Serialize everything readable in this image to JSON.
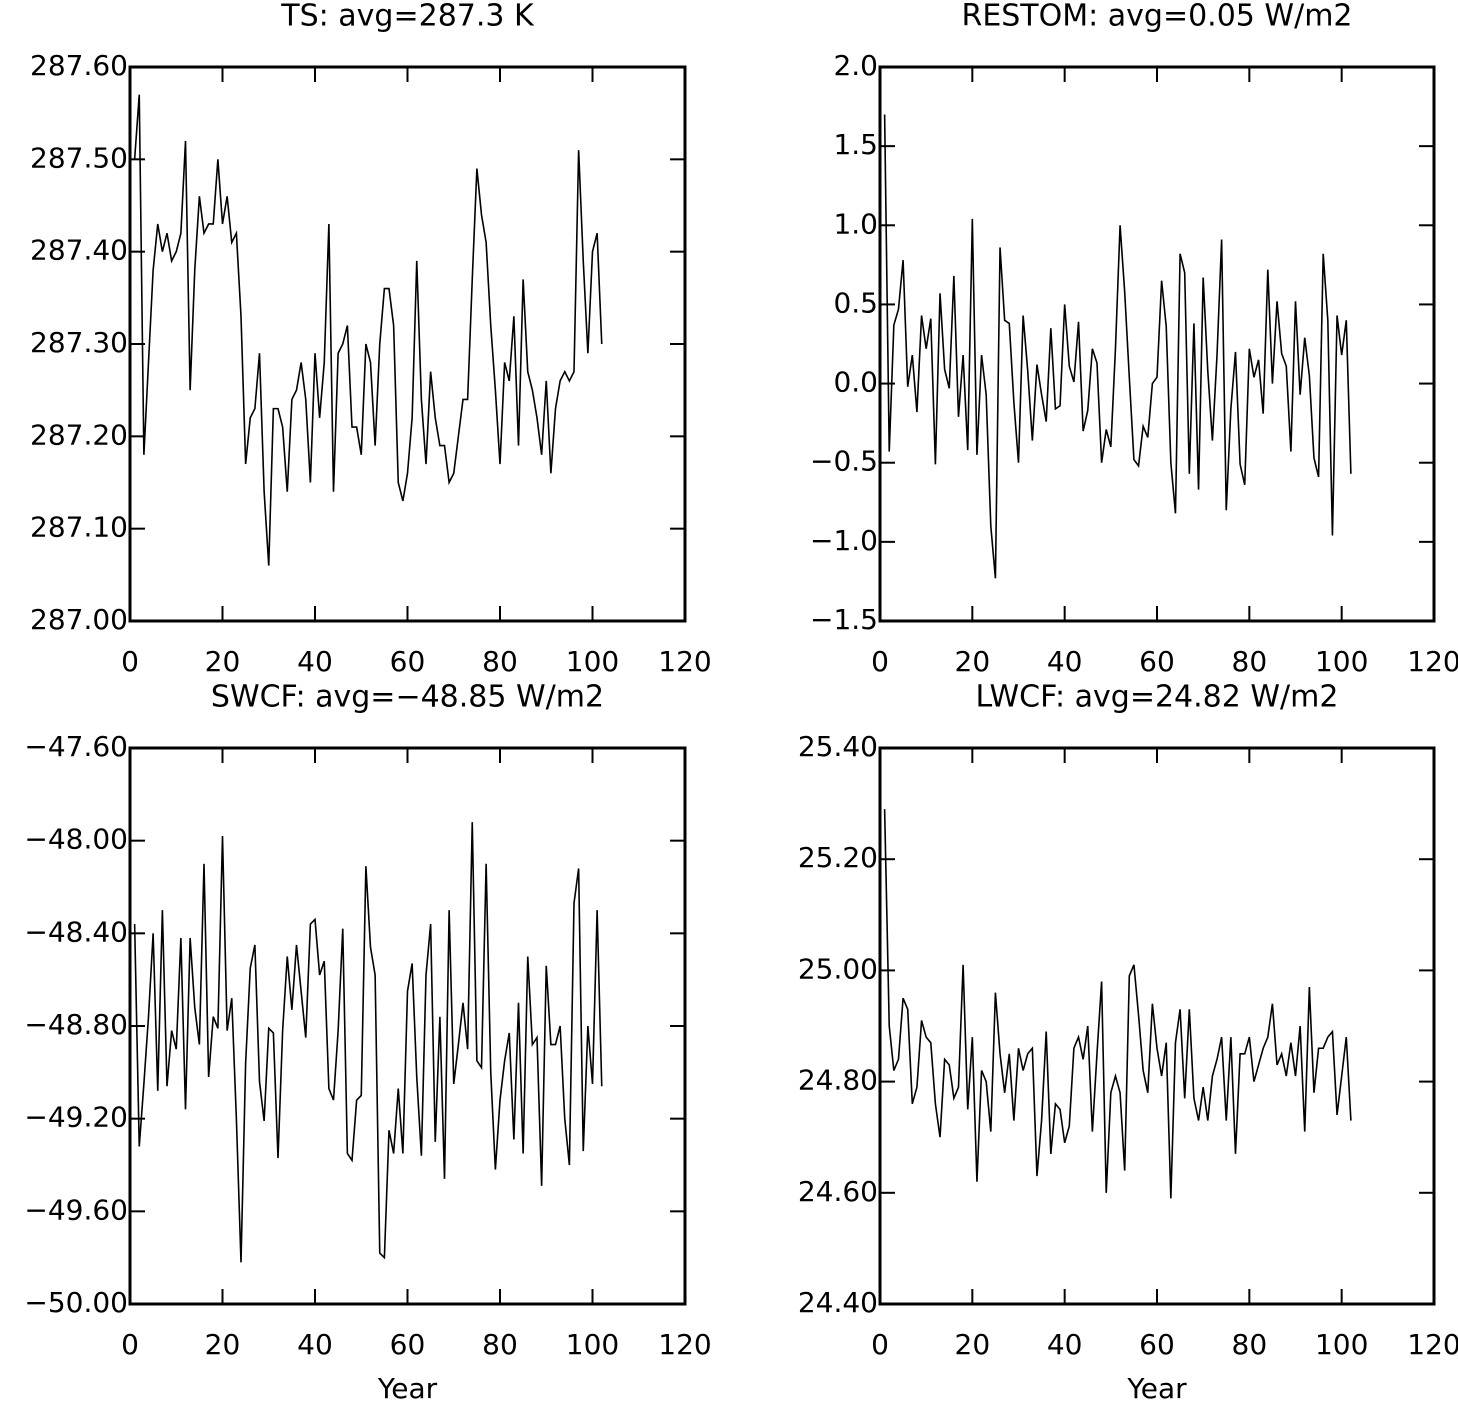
{
  "chart_data": [
    {
      "type": "line",
      "title": "TS: avg=287.3 K",
      "color": "#000000",
      "x": [
        1,
        2,
        3,
        4,
        5,
        6,
        7,
        8,
        9,
        10,
        11,
        12,
        13,
        14,
        15,
        16,
        17,
        18,
        19,
        20,
        21,
        22,
        23,
        24,
        25,
        26,
        27,
        28,
        29,
        30,
        31,
        32,
        33,
        34,
        35,
        36,
        37,
        38,
        39,
        40,
        41,
        42,
        43,
        44,
        45,
        46,
        47,
        48,
        49,
        50,
        51,
        52,
        53,
        54,
        55,
        56,
        57,
        58,
        59,
        60,
        61,
        62,
        63,
        64,
        65,
        66,
        67,
        68,
        69,
        70,
        71,
        72,
        73,
        74,
        75,
        76,
        77,
        78,
        79,
        80,
        81,
        82,
        83,
        84,
        85,
        86,
        87,
        88,
        89,
        90,
        91,
        92,
        93,
        94,
        95,
        96,
        97,
        98,
        99,
        100,
        101,
        102
      ],
      "values": [
        287.5,
        287.57,
        287.18,
        287.28,
        287.38,
        287.43,
        287.4,
        287.42,
        287.39,
        287.4,
        287.42,
        287.52,
        287.25,
        287.38,
        287.46,
        287.42,
        287.43,
        287.43,
        287.5,
        287.43,
        287.46,
        287.41,
        287.42,
        287.33,
        287.17,
        287.22,
        287.23,
        287.29,
        287.14,
        287.06,
        287.23,
        287.23,
        287.21,
        287.14,
        287.24,
        287.25,
        287.28,
        287.24,
        287.15,
        287.29,
        287.22,
        287.28,
        287.43,
        287.14,
        287.29,
        287.3,
        287.32,
        287.21,
        287.21,
        287.18,
        287.3,
        287.28,
        287.19,
        287.3,
        287.36,
        287.36,
        287.32,
        287.15,
        287.13,
        287.16,
        287.22,
        287.39,
        287.24,
        287.17,
        287.27,
        287.22,
        287.19,
        287.19,
        287.15,
        287.16,
        287.2,
        287.24,
        287.24,
        287.37,
        287.49,
        287.44,
        287.41,
        287.32,
        287.25,
        287.17,
        287.28,
        287.26,
        287.33,
        287.19,
        287.37,
        287.27,
        287.25,
        287.22,
        287.18,
        287.26,
        287.16,
        287.23,
        287.26,
        287.27,
        287.26,
        287.27,
        287.51,
        287.39,
        287.29,
        287.4,
        287.42,
        287.3
      ],
      "xlim": [
        0,
        120
      ],
      "xticks": [
        0,
        20,
        40,
        60,
        80,
        100,
        120
      ],
      "ylim": [
        287.0,
        287.6
      ],
      "yticks": [
        {
          "value": 287.0,
          "label": "287.00"
        },
        {
          "value": 287.1,
          "label": "287.10"
        },
        {
          "value": 287.2,
          "label": "287.20"
        },
        {
          "value": 287.3,
          "label": "287.30"
        },
        {
          "value": 287.4,
          "label": "287.40"
        },
        {
          "value": 287.5,
          "label": "287.50"
        },
        {
          "value": 287.6,
          "label": "287.60"
        }
      ]
    },
    {
      "type": "line",
      "title": "RESTOM: avg=0.05 W/m2",
      "color": "#000000",
      "x": [
        1,
        2,
        3,
        4,
        5,
        6,
        7,
        8,
        9,
        10,
        11,
        12,
        13,
        14,
        15,
        16,
        17,
        18,
        19,
        20,
        21,
        22,
        23,
        24,
        25,
        26,
        27,
        28,
        29,
        30,
        31,
        32,
        33,
        34,
        35,
        36,
        37,
        38,
        39,
        40,
        41,
        42,
        43,
        44,
        45,
        46,
        47,
        48,
        49,
        50,
        51,
        52,
        53,
        54,
        55,
        56,
        57,
        58,
        59,
        60,
        61,
        62,
        63,
        64,
        65,
        66,
        67,
        68,
        69,
        70,
        71,
        72,
        73,
        74,
        75,
        76,
        77,
        78,
        79,
        80,
        81,
        82,
        83,
        84,
        85,
        86,
        87,
        88,
        89,
        90,
        91,
        92,
        93,
        94,
        95,
        96,
        97,
        98,
        99,
        100,
        101,
        102
      ],
      "values": [
        1.7,
        -0.43,
        0.37,
        0.47,
        0.78,
        -0.02,
        0.18,
        -0.18,
        0.43,
        0.22,
        0.41,
        -0.51,
        0.57,
        0.09,
        -0.03,
        0.68,
        -0.21,
        0.18,
        -0.42,
        1.04,
        -0.45,
        0.18,
        -0.07,
        -0.9,
        -1.23,
        0.86,
        0.4,
        0.38,
        -0.12,
        -0.5,
        0.43,
        0.08,
        -0.36,
        0.12,
        -0.07,
        -0.24,
        0.35,
        -0.16,
        -0.14,
        0.5,
        0.11,
        0.01,
        0.39,
        -0.3,
        -0.17,
        0.22,
        0.13,
        -0.5,
        -0.29,
        -0.4,
        0.22,
        1.0,
        0.58,
        0.04,
        -0.48,
        -0.52,
        -0.27,
        -0.34,
        0.0,
        0.04,
        0.65,
        0.36,
        -0.5,
        -0.82,
        0.82,
        0.7,
        -0.57,
        0.38,
        -0.67,
        0.67,
        0.08,
        -0.36,
        0.18,
        0.91,
        -0.8,
        -0.16,
        0.2,
        -0.51,
        -0.64,
        0.22,
        0.04,
        0.15,
        -0.19,
        0.72,
        0.0,
        0.52,
        0.19,
        0.11,
        -0.43,
        0.52,
        -0.07,
        0.29,
        0.05,
        -0.47,
        -0.59,
        0.82,
        0.4,
        -0.96,
        0.43,
        0.18,
        0.4,
        -0.57
      ],
      "xlim": [
        0,
        120
      ],
      "xticks": [
        0,
        20,
        40,
        60,
        80,
        100,
        120
      ],
      "ylim": [
        -1.5,
        2.0
      ],
      "yticks": [
        {
          "value": -1.5,
          "label": "−1.5"
        },
        {
          "value": -1.0,
          "label": "−1.0"
        },
        {
          "value": -0.5,
          "label": "−0.5"
        },
        {
          "value": 0,
          "label": "0.0"
        },
        0.5,
        {
          "value": 1,
          "label": "1.0"
        },
        1.5,
        {
          "value": 2,
          "label": "2.0"
        }
      ]
    },
    {
      "type": "line",
      "title": "SWCF: avg=−48.85 W/m2",
      "xlabel": "Year",
      "color": "#000000",
      "x": [
        1,
        2,
        3,
        4,
        5,
        6,
        7,
        8,
        9,
        10,
        11,
        12,
        13,
        14,
        15,
        16,
        17,
        18,
        19,
        20,
        21,
        22,
        23,
        24,
        25,
        26,
        27,
        28,
        29,
        30,
        31,
        32,
        33,
        34,
        35,
        36,
        37,
        38,
        39,
        40,
        41,
        42,
        43,
        44,
        45,
        46,
        47,
        48,
        49,
        50,
        51,
        52,
        53,
        54,
        55,
        56,
        57,
        58,
        59,
        60,
        61,
        62,
        63,
        64,
        65,
        66,
        67,
        68,
        69,
        70,
        71,
        72,
        73,
        74,
        75,
        76,
        77,
        78,
        79,
        80,
        81,
        82,
        83,
        84,
        85,
        86,
        87,
        88,
        89,
        90,
        91,
        92,
        93,
        94,
        95,
        96,
        97,
        98,
        99,
        100,
        101,
        102
      ],
      "values": [
        -48.36,
        -49.32,
        -49.05,
        -48.76,
        -48.4,
        -49.08,
        -48.3,
        -49.06,
        -48.82,
        -48.9,
        -48.42,
        -49.16,
        -48.42,
        -48.72,
        -48.88,
        -48.1,
        -49.02,
        -48.76,
        -48.81,
        -47.98,
        -48.82,
        -48.68,
        -49.2,
        -49.82,
        -48.96,
        -48.55,
        -48.45,
        -49.04,
        -49.21,
        -48.81,
        -48.83,
        -49.37,
        -48.82,
        -48.5,
        -48.73,
        -48.45,
        -48.65,
        -48.85,
        -48.36,
        -48.34,
        -48.58,
        -48.52,
        -49.07,
        -49.12,
        -48.82,
        -48.38,
        -49.35,
        -49.38,
        -49.12,
        -49.1,
        -48.11,
        -48.46,
        -48.58,
        -49.78,
        -49.8,
        -49.25,
        -49.35,
        -49.07,
        -49.35,
        -48.65,
        -48.53,
        -49.02,
        -49.36,
        -48.58,
        -48.36,
        -49.3,
        -48.76,
        -49.46,
        -48.3,
        -49.05,
        -48.88,
        -48.7,
        -48.9,
        -47.92,
        -48.95,
        -48.98,
        -48.1,
        -49.0,
        -49.42,
        -49.12,
        -48.95,
        -48.83,
        -49.29,
        -48.7,
        -49.35,
        -48.5,
        -48.88,
        -48.85,
        -49.49,
        -48.54,
        -48.88,
        -48.88,
        -48.8,
        -49.2,
        -49.4,
        -48.27,
        -48.12,
        -49.34,
        -48.8,
        -49.05,
        -48.3,
        -49.06
      ],
      "xlim": [
        0,
        120
      ],
      "xticks": [
        0,
        20,
        40,
        60,
        80,
        100,
        120
      ],
      "ylim": [
        -50.0,
        -47.6
      ],
      "yticks": [
        {
          "value": -50.0,
          "label": "−50.00"
        },
        {
          "value": -49.6,
          "label": "−49.60"
        },
        {
          "value": -49.2,
          "label": "−49.20"
        },
        {
          "value": -48.8,
          "label": "−48.80"
        },
        {
          "value": -48.4,
          "label": "−48.40"
        },
        {
          "value": -48.0,
          "label": "−48.00"
        },
        {
          "value": -47.6,
          "label": "−47.60"
        }
      ]
    },
    {
      "type": "line",
      "title": "LWCF: avg=24.82 W/m2",
      "xlabel": "Year",
      "color": "#000000",
      "x": [
        1,
        2,
        3,
        4,
        5,
        6,
        7,
        8,
        9,
        10,
        11,
        12,
        13,
        14,
        15,
        16,
        17,
        18,
        19,
        20,
        21,
        22,
        23,
        24,
        25,
        26,
        27,
        28,
        29,
        30,
        31,
        32,
        33,
        34,
        35,
        36,
        37,
        38,
        39,
        40,
        41,
        42,
        43,
        44,
        45,
        46,
        47,
        48,
        49,
        50,
        51,
        52,
        53,
        54,
        55,
        56,
        57,
        58,
        59,
        60,
        61,
        62,
        63,
        64,
        65,
        66,
        67,
        68,
        69,
        70,
        71,
        72,
        73,
        74,
        75,
        76,
        77,
        78,
        79,
        80,
        81,
        82,
        83,
        84,
        85,
        86,
        87,
        88,
        89,
        90,
        91,
        92,
        93,
        94,
        95,
        96,
        97,
        98,
        99,
        100,
        101,
        102
      ],
      "values": [
        25.29,
        24.9,
        24.82,
        24.84,
        24.95,
        24.93,
        24.76,
        24.79,
        24.91,
        24.88,
        24.87,
        24.76,
        24.7,
        24.84,
        24.83,
        24.77,
        24.79,
        25.01,
        24.75,
        24.88,
        24.62,
        24.82,
        24.8,
        24.71,
        24.96,
        24.85,
        24.78,
        24.85,
        24.73,
        24.86,
        24.82,
        24.85,
        24.86,
        24.63,
        24.73,
        24.89,
        24.67,
        24.76,
        24.75,
        24.69,
        24.72,
        24.86,
        24.88,
        24.84,
        24.9,
        24.71,
        24.85,
        24.98,
        24.6,
        24.78,
        24.81,
        24.78,
        24.64,
        24.99,
        25.01,
        24.92,
        24.82,
        24.78,
        24.94,
        24.86,
        24.81,
        24.87,
        24.59,
        24.87,
        24.93,
        24.77,
        24.93,
        24.77,
        24.73,
        24.79,
        24.73,
        24.81,
        24.84,
        24.88,
        24.73,
        24.88,
        24.67,
        24.85,
        24.85,
        24.88,
        24.8,
        24.83,
        24.86,
        24.88,
        24.94,
        24.83,
        24.85,
        24.81,
        24.87,
        24.81,
        24.9,
        24.71,
        24.97,
        24.78,
        24.86,
        24.86,
        24.88,
        24.89,
        24.74,
        24.81,
        24.88,
        24.73
      ],
      "xlim": [
        0,
        120
      ],
      "xticks": [
        0,
        20,
        40,
        60,
        80,
        100,
        120
      ],
      "ylim": [
        24.4,
        25.4
      ],
      "yticks": [
        {
          "value": 24.4,
          "label": "24.40"
        },
        {
          "value": 24.6,
          "label": "24.60"
        },
        {
          "value": 24.8,
          "label": "24.80"
        },
        {
          "value": 25.0,
          "label": "25.00"
        },
        {
          "value": 25.2,
          "label": "25.20"
        },
        {
          "value": 25.4,
          "label": "25.40"
        }
      ]
    }
  ]
}
